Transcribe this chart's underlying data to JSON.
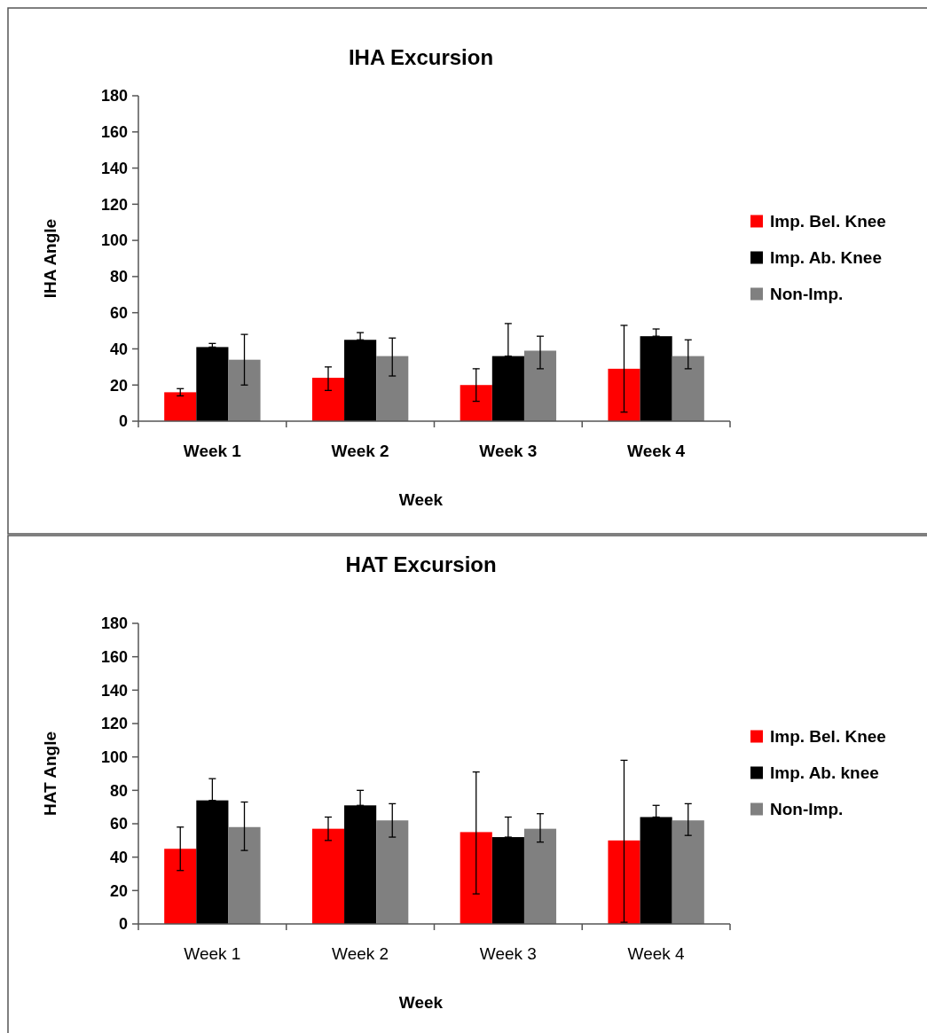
{
  "chart_data": [
    {
      "type": "bar",
      "title": "IHA Excursion",
      "xlabel": "Week",
      "ylabel": "IHA Angle",
      "categories": [
        "Week 1",
        "Week 2",
        "Week 3",
        "Week 4"
      ],
      "ylim": [
        0,
        180
      ],
      "yticks": [
        0,
        20,
        40,
        60,
        80,
        100,
        120,
        140,
        160,
        180
      ],
      "legend": "right",
      "grid": false,
      "series": [
        {
          "name": "Imp. Bel. Knee",
          "color": "#ff0000",
          "values": [
            16,
            24,
            20,
            29
          ],
          "errors": [
            [
              14,
              18
            ],
            [
              17,
              30
            ],
            [
              11,
              29
            ],
            [
              5,
              53
            ]
          ]
        },
        {
          "name": "Imp. Ab. Knee",
          "color": "#000000",
          "values": [
            41,
            45,
            36,
            47
          ],
          "errors": [
            [
              41,
              43
            ],
            [
              45,
              49
            ],
            [
              36,
              54
            ],
            [
              47,
              51
            ]
          ]
        },
        {
          "name": "Non-Imp.",
          "color": "#808080",
          "values": [
            34,
            36,
            39,
            36
          ],
          "errors": [
            [
              20,
              48
            ],
            [
              25,
              46
            ],
            [
              29,
              47
            ],
            [
              29,
              45
            ]
          ]
        }
      ]
    },
    {
      "type": "bar",
      "title": "HAT Excursion",
      "xlabel": "Week",
      "ylabel": "HAT Angle",
      "categories": [
        "Week 1",
        "Week 2",
        "Week 3",
        "Week 4"
      ],
      "ylim": [
        0,
        180
      ],
      "yticks": [
        0,
        20,
        40,
        60,
        80,
        100,
        120,
        140,
        160,
        180
      ],
      "legend": "right",
      "grid": false,
      "series": [
        {
          "name": "Imp. Bel. Knee",
          "color": "#ff0000",
          "values": [
            45,
            57,
            55,
            50
          ],
          "errors": [
            [
              32,
              58
            ],
            [
              50,
              64
            ],
            [
              18,
              91
            ],
            [
              1,
              98
            ]
          ]
        },
        {
          "name": "Imp. Ab. knee",
          "color": "#000000",
          "values": [
            74,
            71,
            52,
            64
          ],
          "errors": [
            [
              74,
              87
            ],
            [
              71,
              80
            ],
            [
              52,
              64
            ],
            [
              64,
              71
            ]
          ]
        },
        {
          "name": "Non-Imp.",
          "color": "#808080",
          "values": [
            58,
            62,
            57,
            62
          ],
          "errors": [
            [
              44,
              73
            ],
            [
              52,
              72
            ],
            [
              49,
              66
            ],
            [
              53,
              72
            ]
          ]
        }
      ]
    }
  ]
}
